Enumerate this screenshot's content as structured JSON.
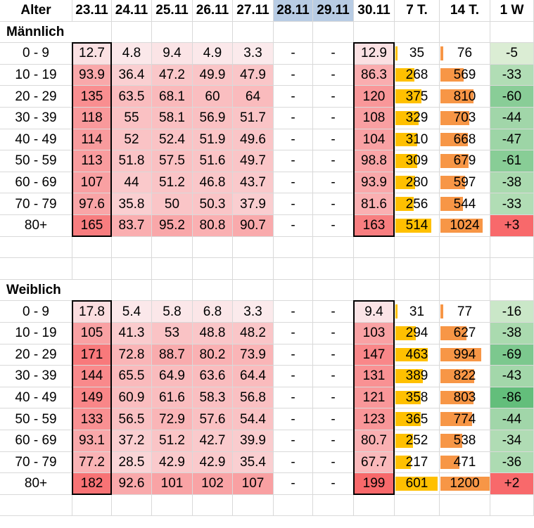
{
  "header": [
    "Alter",
    "23.11",
    "24.11",
    "25.11",
    "26.11",
    "27.11",
    "28.11",
    "29.11",
    "30.11",
    "7 T.",
    "14 T.",
    "1 W"
  ],
  "weekend_columns": [
    6,
    7
  ],
  "weekend_color": "#b8cce4",
  "colors": {
    "heat_low": "#fbeef0",
    "heat_high": "#f8696b",
    "bar_7t": "#ffc000",
    "bar_14t": "#f79646",
    "change_neg_light": "#e2f0d9",
    "change_neg_dark": "#63be7b",
    "change_pos": "#f8696b"
  },
  "sections": [
    {
      "title": "Männlich",
      "rows": [
        {
          "age": "0 - 9",
          "values": [
            "12.7",
            "4.8",
            "9.4",
            "4.9",
            "3.3",
            "-",
            "-",
            "12.9"
          ],
          "t7": "35",
          "t14": "76",
          "w1": "-5"
        },
        {
          "age": "10 - 19",
          "values": [
            "93.9",
            "36.4",
            "47.2",
            "49.9",
            "47.9",
            "-",
            "-",
            "86.3"
          ],
          "t7": "268",
          "t14": "569",
          "w1": "-33"
        },
        {
          "age": "20 - 29",
          "values": [
            "135",
            "63.5",
            "68.1",
            "60",
            "64",
            "-",
            "-",
            "120"
          ],
          "t7": "375",
          "t14": "810",
          "w1": "-60"
        },
        {
          "age": "30 - 39",
          "values": [
            "118",
            "55",
            "58.1",
            "56.9",
            "51.7",
            "-",
            "-",
            "108"
          ],
          "t7": "329",
          "t14": "703",
          "w1": "-44"
        },
        {
          "age": "40 - 49",
          "values": [
            "114",
            "52",
            "52.4",
            "51.9",
            "49.6",
            "-",
            "-",
            "104"
          ],
          "t7": "310",
          "t14": "668",
          "w1": "-47"
        },
        {
          "age": "50 - 59",
          "values": [
            "113",
            "51.8",
            "57.5",
            "51.6",
            "49.7",
            "-",
            "-",
            "98.8"
          ],
          "t7": "309",
          "t14": "679",
          "w1": "-61"
        },
        {
          "age": "60 - 69",
          "values": [
            "107",
            "44",
            "51.2",
            "46.8",
            "43.7",
            "-",
            "-",
            "93.9"
          ],
          "t7": "280",
          "t14": "597",
          "w1": "-38"
        },
        {
          "age": "70 - 79",
          "values": [
            "97.6",
            "35.8",
            "50",
            "50.3",
            "37.9",
            "-",
            "-",
            "81.6"
          ],
          "t7": "256",
          "t14": "544",
          "w1": "-33"
        },
        {
          "age": "80+",
          "values": [
            "165",
            "83.7",
            "95.2",
            "80.8",
            "90.7",
            "-",
            "-",
            "163"
          ],
          "t7": "514",
          "t14": "1024",
          "w1": "+3"
        }
      ]
    },
    {
      "title": "Weiblich",
      "rows": [
        {
          "age": "0 - 9",
          "values": [
            "17.8",
            "5.4",
            "5.8",
            "6.8",
            "3.3",
            "-",
            "-",
            "9.4"
          ],
          "t7": "31",
          "t14": "77",
          "w1": "-16"
        },
        {
          "age": "10 - 19",
          "values": [
            "105",
            "41.3",
            "53",
            "48.8",
            "48.2",
            "-",
            "-",
            "103"
          ],
          "t7": "294",
          "t14": "627",
          "w1": "-38"
        },
        {
          "age": "20 - 29",
          "values": [
            "171",
            "72.8",
            "88.7",
            "80.2",
            "73.9",
            "-",
            "-",
            "147"
          ],
          "t7": "463",
          "t14": "994",
          "w1": "-69"
        },
        {
          "age": "30 - 39",
          "values": [
            "144",
            "65.5",
            "64.9",
            "63.6",
            "64.4",
            "-",
            "-",
            "131"
          ],
          "t7": "389",
          "t14": "822",
          "w1": "-43"
        },
        {
          "age": "40 - 49",
          "values": [
            "149",
            "60.9",
            "61.6",
            "58.3",
            "56.8",
            "-",
            "-",
            "121"
          ],
          "t7": "358",
          "t14": "803",
          "w1": "-86"
        },
        {
          "age": "50 - 59",
          "values": [
            "133",
            "56.5",
            "72.9",
            "57.6",
            "54.4",
            "-",
            "-",
            "123"
          ],
          "t7": "365",
          "t14": "774",
          "w1": "-44"
        },
        {
          "age": "60 - 69",
          "values": [
            "93.1",
            "37.2",
            "51.2",
            "42.7",
            "39.9",
            "-",
            "-",
            "80.7"
          ],
          "t7": "252",
          "t14": "538",
          "w1": "-34"
        },
        {
          "age": "70 - 79",
          "values": [
            "77.2",
            "28.5",
            "42.9",
            "42.9",
            "35.4",
            "-",
            "-",
            "67.7"
          ],
          "t7": "217",
          "t14": "471",
          "w1": "-36"
        },
        {
          "age": "80+",
          "values": [
            "182",
            "92.6",
            "101",
            "102",
            "107",
            "-",
            "-",
            "199"
          ],
          "t7": "601",
          "t14": "1200",
          "w1": "+2"
        }
      ]
    }
  ]
}
